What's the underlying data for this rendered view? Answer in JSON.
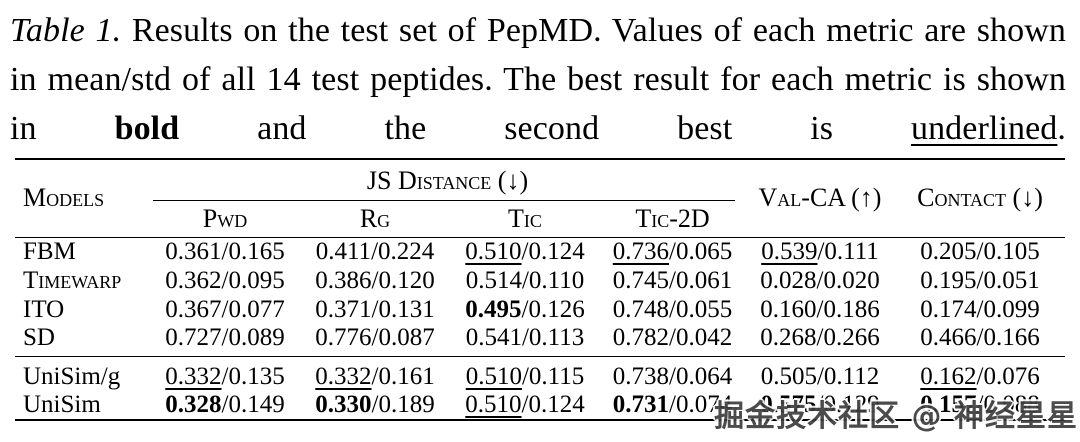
{
  "caption": {
    "label": "Table 1.",
    "body_1": " Results on the test set of PepMD. Values of each metric are shown in mean/std of all 14 test peptides. The best result for each metric is shown in ",
    "bold_word": "bold",
    "body_2": " and the second best is ",
    "underlined_word": "underlined",
    "period": "."
  },
  "table": {
    "header": {
      "models": "Models",
      "js_distance": "JS Distance (↓)",
      "sub_columns": [
        "Pwd",
        "Rg",
        "Tic",
        "Tic-2D"
      ],
      "val_ca": "Val-CA (↑)",
      "contact": "Contact (↓)"
    },
    "rows": [
      {
        "model": "FBM",
        "caps": true,
        "cells": [
          {
            "m": "0.361",
            "s": "0.165",
            "style": "plain"
          },
          {
            "m": "0.411",
            "s": "0.224",
            "style": "plain"
          },
          {
            "m": "0.510",
            "s": "0.124",
            "style": "underline"
          },
          {
            "m": "0.736",
            "s": "0.065",
            "style": "underline"
          },
          {
            "m": "0.539",
            "s": "0.111",
            "style": "underline"
          },
          {
            "m": "0.205",
            "s": "0.105",
            "style": "plain"
          }
        ]
      },
      {
        "model": "Timewarp",
        "caps": true,
        "cells": [
          {
            "m": "0.362",
            "s": "0.095",
            "style": "plain"
          },
          {
            "m": "0.386",
            "s": "0.120",
            "style": "plain"
          },
          {
            "m": "0.514",
            "s": "0.110",
            "style": "plain"
          },
          {
            "m": "0.745",
            "s": "0.061",
            "style": "plain"
          },
          {
            "m": "0.028",
            "s": "0.020",
            "style": "plain"
          },
          {
            "m": "0.195",
            "s": "0.051",
            "style": "plain"
          }
        ]
      },
      {
        "model": "ITO",
        "caps": true,
        "cells": [
          {
            "m": "0.367",
            "s": "0.077",
            "style": "plain"
          },
          {
            "m": "0.371",
            "s": "0.131",
            "style": "plain"
          },
          {
            "m": "0.495",
            "s": "0.126",
            "style": "bold"
          },
          {
            "m": "0.748",
            "s": "0.055",
            "style": "plain"
          },
          {
            "m": "0.160",
            "s": "0.186",
            "style": "plain"
          },
          {
            "m": "0.174",
            "s": "0.099",
            "style": "plain"
          }
        ]
      },
      {
        "model": "SD",
        "caps": true,
        "cells": [
          {
            "m": "0.727",
            "s": "0.089",
            "style": "plain"
          },
          {
            "m": "0.776",
            "s": "0.087",
            "style": "plain"
          },
          {
            "m": "0.541",
            "s": "0.113",
            "style": "plain"
          },
          {
            "m": "0.782",
            "s": "0.042",
            "style": "plain"
          },
          {
            "m": "0.268",
            "s": "0.266",
            "style": "plain"
          },
          {
            "m": "0.466",
            "s": "0.166",
            "style": "plain"
          }
        ]
      },
      {
        "model": "UniSim/g",
        "caps": false,
        "cells": [
          {
            "m": "0.332",
            "s": "0.135",
            "style": "underline"
          },
          {
            "m": "0.332",
            "s": "0.161",
            "style": "underline"
          },
          {
            "m": "0.510",
            "s": "0.115",
            "style": "underline"
          },
          {
            "m": "0.738",
            "s": "0.064",
            "style": "plain"
          },
          {
            "m": "0.505",
            "s": "0.112",
            "style": "plain"
          },
          {
            "m": "0.162",
            "s": "0.076",
            "style": "underline"
          }
        ]
      },
      {
        "model": "UniSim",
        "caps": false,
        "cells": [
          {
            "m": "0.328",
            "s": "0.149",
            "style": "bold"
          },
          {
            "m": "0.330",
            "s": "0.189",
            "style": "bold"
          },
          {
            "m": "0.510",
            "s": "0.124",
            "style": "underline"
          },
          {
            "m": "0.731",
            "s": "0.074",
            "style": "bold"
          },
          {
            "m": "0.575",
            "s": "0.129",
            "style": "bold"
          },
          {
            "m": "0.157",
            "s": "0.088",
            "style": "bold"
          }
        ]
      }
    ]
  },
  "watermark": {
    "text": "掘金技术社区 @ 神经星星",
    "color": "#3c3c3c"
  }
}
